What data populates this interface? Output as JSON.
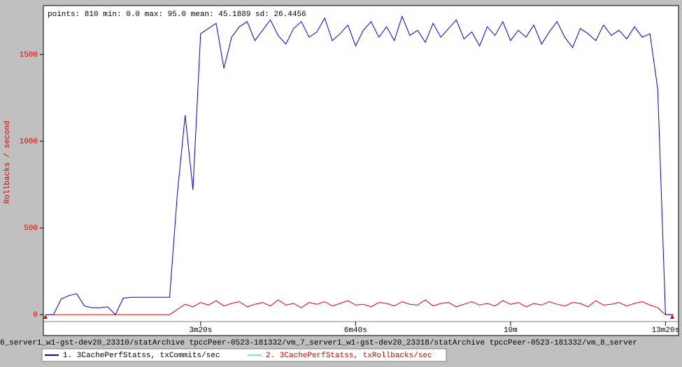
{
  "chart_data": {
    "type": "line",
    "annotation": "points: 810 min: 0.0 max: 95.0 mean: 45.1889 sd: 26.4456",
    "ylabel": "Rollbacks / second",
    "caption": "6_server1_w1-gst-dev20_23310/statArchive tpccPeer-0523-181332/vm_7_server1_w1-gst-dev20_23318/statArchive tpccPeer-0523-181332/vm_8_server",
    "x": [
      0,
      10,
      20,
      30,
      40,
      50,
      60,
      70,
      80,
      90,
      100,
      110,
      120,
      130,
      140,
      150,
      160,
      170,
      180,
      190,
      200,
      210,
      220,
      230,
      240,
      250,
      260,
      270,
      280,
      290,
      300,
      310,
      320,
      330,
      340,
      350,
      360,
      370,
      380,
      390,
      400,
      410,
      420,
      430,
      440,
      450,
      460,
      470,
      480,
      490,
      500,
      510,
      520,
      530,
      540,
      550,
      560,
      570,
      580,
      590,
      600,
      610,
      620,
      630,
      640,
      650,
      660,
      670,
      680,
      690,
      700,
      710,
      720,
      730,
      740,
      750,
      760,
      770,
      780,
      790,
      800,
      810
    ],
    "series": [
      {
        "name": "1.  3CachePerfStatss, txCommits/sec",
        "color": "#0000e0",
        "legend_color": "#0000e0",
        "text_color": "#000000",
        "values": [
          0,
          0,
          90,
          110,
          120,
          50,
          40,
          40,
          45,
          0,
          95,
          100,
          100,
          100,
          100,
          100,
          100,
          700,
          1150,
          720,
          1620,
          1650,
          1680,
          1420,
          1600,
          1660,
          1690,
          1580,
          1640,
          1700,
          1610,
          1560,
          1650,
          1690,
          1600,
          1630,
          1710,
          1580,
          1620,
          1670,
          1550,
          1640,
          1690,
          1600,
          1660,
          1580,
          1720,
          1610,
          1640,
          1570,
          1680,
          1600,
          1650,
          1700,
          1590,
          1630,
          1550,
          1660,
          1610,
          1690,
          1580,
          1640,
          1600,
          1670,
          1560,
          1630,
          1690,
          1600,
          1540,
          1650,
          1620,
          1580,
          1670,
          1610,
          1640,
          1590,
          1660,
          1600,
          1620,
          1300,
          0,
          0
        ]
      },
      {
        "name": "2.  3CachePerfStatss, txRollbacks/sec",
        "color": "#e00000",
        "legend_color": "#80e0e0",
        "text_color": "#e00000",
        "values": [
          0,
          0,
          0,
          0,
          0,
          0,
          0,
          0,
          0,
          0,
          0,
          0,
          0,
          0,
          0,
          0,
          0,
          30,
          60,
          45,
          70,
          55,
          80,
          50,
          65,
          75,
          45,
          60,
          70,
          50,
          85,
          55,
          65,
          40,
          70,
          60,
          75,
          50,
          65,
          80,
          55,
          60,
          45,
          70,
          65,
          50,
          75,
          60,
          55,
          85,
          50,
          65,
          70,
          45,
          60,
          75,
          55,
          65,
          50,
          80,
          60,
          70,
          45,
          65,
          55,
          75,
          60,
          50,
          70,
          65,
          45,
          80,
          55,
          60,
          70,
          50,
          65,
          75,
          55,
          40,
          0,
          0
        ]
      }
    ],
    "xlim": [
      -3,
      815
    ],
    "ylim": [
      -40,
      1766
    ],
    "xticks": [
      {
        "value": 200,
        "label": "3m20s"
      },
      {
        "value": 400,
        "label": "6m40s"
      },
      {
        "value": 600,
        "label": "10m"
      },
      {
        "value": 800,
        "label": "13m20s"
      }
    ],
    "yticks": [
      0,
      500,
      1000,
      1500
    ],
    "ytick_color": "#e00000"
  }
}
